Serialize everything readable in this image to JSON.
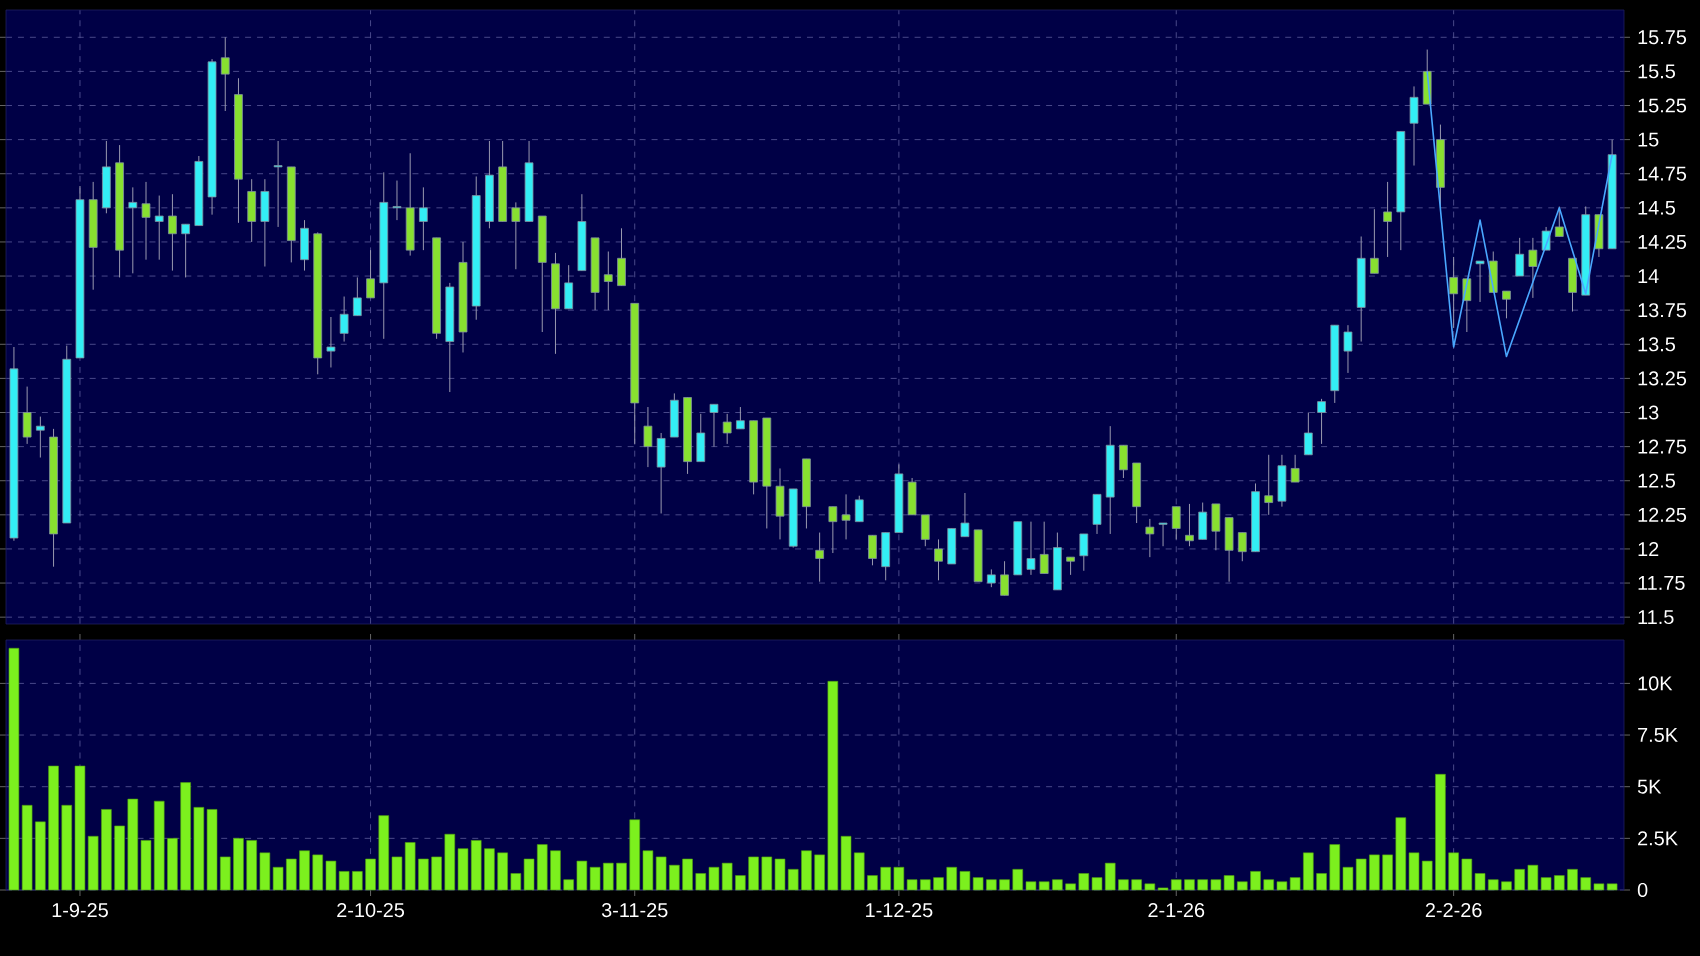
{
  "chart_data": [
    {
      "type": "candlestick",
      "categories": [
        null,
        null,
        null,
        null,
        null,
        null,
        null,
        null,
        null,
        null,
        null,
        null,
        null,
        null,
        null,
        null,
        null,
        null,
        null,
        null,
        null,
        null,
        null,
        null,
        null,
        null,
        null,
        null,
        null,
        null,
        null,
        null,
        null,
        null,
        null,
        null,
        null,
        null,
        null,
        null,
        null,
        null,
        null,
        null,
        null,
        null,
        null,
        null,
        null,
        null,
        null,
        null,
        null,
        null,
        null,
        null,
        null,
        null,
        null,
        null,
        null,
        null,
        null,
        null,
        null,
        null,
        null,
        null,
        null,
        null,
        null,
        null,
        null,
        null,
        null,
        null,
        null,
        null,
        null,
        null,
        null,
        null,
        null,
        null,
        null,
        null,
        null,
        null,
        null,
        null,
        null,
        null,
        null,
        null,
        null,
        null,
        null,
        null,
        null,
        null,
        null,
        null,
        null,
        null,
        null,
        null,
        null,
        null,
        null,
        null,
        null,
        null,
        null,
        null,
        null,
        null,
        null,
        null,
        null,
        null,
        null,
        null
      ],
      "ohlc": [
        [
          12.08,
          13.48,
          12.06,
          13.32
        ],
        [
          13.0,
          13.19,
          12.77,
          12.82
        ],
        [
          12.87,
          12.97,
          12.67,
          12.9
        ],
        [
          12.82,
          12.88,
          11.87,
          12.11
        ],
        [
          12.19,
          13.49,
          12.19,
          13.39
        ],
        [
          13.4,
          14.66,
          13.4,
          14.56
        ],
        [
          14.56,
          14.69,
          13.9,
          14.21
        ],
        [
          14.5,
          14.99,
          14.46,
          14.8
        ],
        [
          14.83,
          14.96,
          13.99,
          14.19
        ],
        [
          14.5,
          14.65,
          14.02,
          14.54
        ],
        [
          14.53,
          14.69,
          14.12,
          14.43
        ],
        [
          14.4,
          14.59,
          14.12,
          14.44
        ],
        [
          14.44,
          14.6,
          14.04,
          14.31
        ],
        [
          14.31,
          14.38,
          13.99,
          14.38
        ],
        [
          14.37,
          14.88,
          14.37,
          14.84
        ],
        [
          14.58,
          15.59,
          14.45,
          15.57
        ],
        [
          15.6,
          15.75,
          15.21,
          15.48
        ],
        [
          15.33,
          15.45,
          14.39,
          14.71
        ],
        [
          14.62,
          14.71,
          14.25,
          14.4
        ],
        [
          14.4,
          14.71,
          14.07,
          14.62
        ],
        [
          14.8,
          14.99,
          14.36,
          14.81
        ],
        [
          14.8,
          14.8,
          14.1,
          14.26
        ],
        [
          14.12,
          14.41,
          14.04,
          14.35
        ],
        [
          14.31,
          14.32,
          13.28,
          13.4
        ],
        [
          13.45,
          13.7,
          13.33,
          13.48
        ],
        [
          13.58,
          13.85,
          13.52,
          13.72
        ],
        [
          13.71,
          13.99,
          13.71,
          13.84
        ],
        [
          13.98,
          14.19,
          13.84,
          13.84
        ],
        [
          13.95,
          14.76,
          13.54,
          14.54
        ],
        [
          14.5,
          14.7,
          14.41,
          14.51
        ],
        [
          14.5,
          14.9,
          14.15,
          14.19
        ],
        [
          14.4,
          14.65,
          14.19,
          14.5
        ],
        [
          14.28,
          14.28,
          13.54,
          13.58
        ],
        [
          13.52,
          13.95,
          13.15,
          13.92
        ],
        [
          14.1,
          14.25,
          13.44,
          13.59
        ],
        [
          13.78,
          14.73,
          13.68,
          14.59
        ],
        [
          14.4,
          14.99,
          14.35,
          14.74
        ],
        [
          14.8,
          14.99,
          14.4,
          14.4
        ],
        [
          14.5,
          14.54,
          14.05,
          14.4
        ],
        [
          14.4,
          14.99,
          14.4,
          14.83
        ],
        [
          14.44,
          14.44,
          13.59,
          14.1
        ],
        [
          14.09,
          14.17,
          13.43,
          13.76
        ],
        [
          13.76,
          14.08,
          13.76,
          13.95
        ],
        [
          14.04,
          14.6,
          14.04,
          14.4
        ],
        [
          14.28,
          14.28,
          13.75,
          13.88
        ],
        [
          14.01,
          14.18,
          13.75,
          13.96
        ],
        [
          14.13,
          14.35,
          13.93,
          13.93
        ],
        [
          13.8,
          13.8,
          12.77,
          13.07
        ],
        [
          12.9,
          13.04,
          12.6,
          12.75
        ],
        [
          12.6,
          12.85,
          12.26,
          12.81
        ],
        [
          12.82,
          13.14,
          12.82,
          13.09
        ],
        [
          13.11,
          13.11,
          12.55,
          12.64
        ],
        [
          12.64,
          12.99,
          12.64,
          12.85
        ],
        [
          13.0,
          13.06,
          12.75,
          13.06
        ],
        [
          12.93,
          12.99,
          12.77,
          12.85
        ],
        [
          12.88,
          13.04,
          12.88,
          12.94
        ],
        [
          12.94,
          12.94,
          12.4,
          12.49
        ],
        [
          12.96,
          12.96,
          12.15,
          12.46
        ],
        [
          12.46,
          12.59,
          12.07,
          12.24
        ],
        [
          12.02,
          12.44,
          12.01,
          12.44
        ],
        [
          12.66,
          12.66,
          12.15,
          12.31
        ],
        [
          11.99,
          12.12,
          11.76,
          11.93
        ],
        [
          12.31,
          12.31,
          11.97,
          12.2
        ],
        [
          12.25,
          12.4,
          12.07,
          12.21
        ],
        [
          12.2,
          12.39,
          12.2,
          12.36
        ],
        [
          12.1,
          12.1,
          11.88,
          11.93
        ],
        [
          11.87,
          12.12,
          11.77,
          12.12
        ],
        [
          12.12,
          12.62,
          12.12,
          12.55
        ],
        [
          12.49,
          12.52,
          12.25,
          12.25
        ],
        [
          12.25,
          12.25,
          12.02,
          12.07
        ],
        [
          12.0,
          12.07,
          11.77,
          11.91
        ],
        [
          11.89,
          12.15,
          11.89,
          12.15
        ],
        [
          12.09,
          12.41,
          12.09,
          12.19
        ],
        [
          12.14,
          12.14,
          11.76,
          11.76
        ],
        [
          11.75,
          11.85,
          11.72,
          11.81
        ],
        [
          11.81,
          11.91,
          11.66,
          11.66
        ],
        [
          11.81,
          12.2,
          11.81,
          12.2
        ],
        [
          11.85,
          12.2,
          11.81,
          11.93
        ],
        [
          11.96,
          12.2,
          11.82,
          11.82
        ],
        [
          11.7,
          12.12,
          11.7,
          12.01
        ],
        [
          11.94,
          11.94,
          11.81,
          11.91
        ],
        [
          11.95,
          12.11,
          11.84,
          12.11
        ],
        [
          12.18,
          12.4,
          12.11,
          12.4
        ],
        [
          12.38,
          12.9,
          12.11,
          12.76
        ],
        [
          12.76,
          12.76,
          12.52,
          12.58
        ],
        [
          12.63,
          12.63,
          12.19,
          12.31
        ],
        [
          12.16,
          12.22,
          11.94,
          12.11
        ],
        [
          12.18,
          12.19,
          12.02,
          12.19
        ],
        [
          12.31,
          12.31,
          12.07,
          12.15
        ],
        [
          12.1,
          12.33,
          12.02,
          12.06
        ],
        [
          12.07,
          12.34,
          12.07,
          12.27
        ],
        [
          12.33,
          12.33,
          11.99,
          12.13
        ],
        [
          12.23,
          12.23,
          11.76,
          11.99
        ],
        [
          12.12,
          12.12,
          11.91,
          11.98
        ],
        [
          11.98,
          12.48,
          11.98,
          12.42
        ],
        [
          12.39,
          12.69,
          12.25,
          12.34
        ],
        [
          12.35,
          12.69,
          12.31,
          12.61
        ],
        [
          12.59,
          12.69,
          12.49,
          12.49
        ],
        [
          12.69,
          13.0,
          12.69,
          12.85
        ],
        [
          13.0,
          13.1,
          12.77,
          13.08
        ],
        [
          13.16,
          13.64,
          13.07,
          13.64
        ],
        [
          13.45,
          13.64,
          13.29,
          13.59
        ],
        [
          13.77,
          14.29,
          13.52,
          14.13
        ],
        [
          14.13,
          14.49,
          14.02,
          14.02
        ],
        [
          14.47,
          14.69,
          14.14,
          14.4
        ],
        [
          14.47,
          15.06,
          14.19,
          15.06
        ],
        [
          15.12,
          15.39,
          14.81,
          15.31
        ],
        [
          15.5,
          15.66,
          15.26,
          15.26
        ],
        [
          15.0,
          15.11,
          14.5,
          14.65
        ],
        [
          13.99,
          14.14,
          13.62,
          13.87
        ],
        [
          13.98,
          13.98,
          13.59,
          13.82
        ],
        [
          14.09,
          14.11,
          13.81,
          14.11
        ],
        [
          14.11,
          14.18,
          13.88,
          13.88
        ],
        [
          13.89,
          13.89,
          13.69,
          13.83
        ],
        [
          14.0,
          14.28,
          14.0,
          14.16
        ],
        [
          14.19,
          14.28,
          13.84,
          14.07
        ],
        [
          14.19,
          14.36,
          14.19,
          14.33
        ],
        [
          14.36,
          14.51,
          14.29,
          14.29
        ],
        [
          14.13,
          14.13,
          13.74,
          13.88
        ],
        [
          13.86,
          14.51,
          13.86,
          14.45
        ],
        [
          14.45,
          14.45,
          14.14,
          14.2
        ],
        [
          14.2,
          15.0,
          14.2,
          14.89
        ]
      ],
      "colors": [
        "#33eef5",
        "#88e030",
        "#33eef5",
        "#88e030",
        "#33eef5",
        "#33eef5",
        "#88e030",
        "#33eef5",
        "#88e030",
        "#33eef5",
        "#88e030",
        "#33eef5",
        "#88e030",
        "#33eef5",
        "#33eef5",
        "#33eef5",
        "#88e030",
        "#88e030",
        "#88e030",
        "#33eef5",
        "#33eef5",
        "#88e030",
        "#33eef5",
        "#88e030",
        "#33eef5",
        "#33eef5",
        "#33eef5",
        "#88e030",
        "#33eef5",
        "#33eef5",
        "#88e030",
        "#33eef5",
        "#88e030",
        "#33eef5",
        "#88e030",
        "#33eef5",
        "#33eef5",
        "#88e030",
        "#88e030",
        "#33eef5",
        "#88e030",
        "#88e030",
        "#33eef5",
        "#33eef5",
        "#88e030",
        "#88e030",
        "#88e030",
        "#88e030",
        "#88e030",
        "#33eef5",
        "#33eef5",
        "#88e030",
        "#33eef5",
        "#33eef5",
        "#88e030",
        "#33eef5",
        "#88e030",
        "#88e030",
        "#88e030",
        "#33eef5",
        "#88e030",
        "#88e030",
        "#88e030",
        "#88e030",
        "#33eef5",
        "#88e030",
        "#33eef5",
        "#33eef5",
        "#88e030",
        "#88e030",
        "#88e030",
        "#33eef5",
        "#33eef5",
        "#88e030",
        "#33eef5",
        "#88e030",
        "#33eef5",
        "#33eef5",
        "#88e030",
        "#33eef5",
        "#88e030",
        "#33eef5",
        "#33eef5",
        "#33eef5",
        "#88e030",
        "#88e030",
        "#88e030",
        "#33eef5",
        "#88e030",
        "#88e030",
        "#33eef5",
        "#88e030",
        "#88e030",
        "#88e030",
        "#33eef5",
        "#88e030",
        "#33eef5",
        "#88e030",
        "#33eef5",
        "#33eef5",
        "#33eef5",
        "#33eef5",
        "#33eef5",
        "#88e030",
        "#88e030",
        "#33eef5",
        "#33eef5",
        "#88e030",
        "#88e030",
        "#88e030",
        "#88e030",
        "#33eef5",
        "#88e030",
        "#88e030",
        "#33eef5",
        "#88e030",
        "#33eef5",
        "#88e030",
        "#88e030",
        "#33eef5",
        "#88e030",
        "#33eef5"
      ],
      "series": [
        {
          "type": "line",
          "color": "#4aa8ff",
          "values": [
            null,
            null,
            null,
            null,
            null,
            null,
            null,
            null,
            null,
            null,
            null,
            null,
            null,
            null,
            null,
            null,
            null,
            null,
            null,
            null,
            null,
            null,
            null,
            null,
            null,
            null,
            null,
            null,
            null,
            null,
            null,
            null,
            null,
            null,
            null,
            null,
            null,
            null,
            null,
            null,
            null,
            null,
            null,
            null,
            null,
            null,
            null,
            null,
            null,
            null,
            null,
            null,
            null,
            null,
            null,
            null,
            null,
            null,
            null,
            null,
            null,
            null,
            null,
            null,
            null,
            null,
            null,
            null,
            null,
            null,
            null,
            null,
            null,
            null,
            null,
            null,
            null,
            null,
            null,
            null,
            null,
            null,
            null,
            null,
            null,
            null,
            null,
            null,
            null,
            null,
            null,
            null,
            null,
            null,
            null,
            null,
            null,
            null,
            null,
            null,
            null,
            null,
            null,
            null,
            null,
            null,
            null,
            15.5,
            null,
            13.48,
            null,
            14.41,
            null,
            13.41,
            null,
            null,
            null,
            14.5,
            null,
            13.87,
            null,
            14.89
          ]
        }
      ],
      "ylim": [
        11.45,
        15.95
      ],
      "yticks": [
        11.5,
        11.75,
        12,
        12.25,
        12.5,
        12.75,
        13,
        13.25,
        13.5,
        13.75,
        14,
        14.25,
        14.5,
        14.75,
        15,
        15.25,
        15.5,
        15.75
      ],
      "grid": true
    },
    {
      "type": "bar",
      "categories": [
        null,
        null,
        null,
        null,
        null,
        "1-9-25",
        null,
        null,
        null,
        null,
        null,
        null,
        null,
        null,
        null,
        null,
        null,
        null,
        null,
        null,
        null,
        null,
        null,
        null,
        null,
        null,
        null,
        "2-10-25",
        null,
        null,
        null,
        null,
        null,
        null,
        null,
        null,
        null,
        null,
        null,
        null,
        null,
        null,
        null,
        null,
        null,
        null,
        null,
        "3-11-25",
        null,
        null,
        null,
        null,
        null,
        null,
        null,
        null,
        null,
        null,
        null,
        null,
        null,
        null,
        null,
        null,
        null,
        null,
        null,
        "1-12-25",
        null,
        null,
        null,
        null,
        null,
        null,
        null,
        null,
        null,
        null,
        null,
        null,
        null,
        null,
        null,
        null,
        null,
        null,
        null,
        null,
        "2-1-26",
        null,
        null,
        null,
        null,
        null,
        null,
        null,
        null,
        null,
        null,
        null,
        null,
        null,
        null,
        null,
        null,
        null,
        null,
        null,
        null,
        "2-2-26",
        null,
        null,
        null,
        null,
        null,
        null,
        null,
        null,
        null,
        null,
        null,
        null
      ],
      "values": [
        11700,
        4100,
        3300,
        6000,
        4100,
        6000,
        2600,
        3900,
        3100,
        4400,
        2400,
        4300,
        2500,
        5200,
        4000,
        3900,
        1600,
        2500,
        2400,
        1800,
        1100,
        1500,
        1900,
        1700,
        1400,
        900,
        900,
        1500,
        3600,
        1600,
        2300,
        1500,
        1600,
        2700,
        2000,
        2400,
        2000,
        1800,
        800,
        1500,
        2200,
        1900,
        500,
        1400,
        1100,
        1300,
        1300,
        3400,
        1900,
        1600,
        1200,
        1500,
        800,
        1100,
        1300,
        700,
        1600,
        1600,
        1500,
        1000,
        1900,
        1700,
        10100,
        2600,
        1800,
        700,
        1100,
        1100,
        500,
        500,
        600,
        1100,
        900,
        600,
        500,
        500,
        1000,
        400,
        400,
        500,
        300,
        800,
        600,
        1300,
        500,
        500,
        300,
        100,
        500,
        500,
        500,
        500,
        700,
        400,
        900,
        500,
        400,
        600,
        1800,
        800,
        2200,
        1100,
        1500,
        1700,
        1700,
        3500,
        1800,
        1400,
        5600,
        1800,
        1500,
        800,
        500,
        400,
        1000,
        1200,
        600,
        700,
        1000,
        600,
        300,
        300
      ],
      "color": "#7cf01e",
      "ylim": [
        0,
        12100
      ],
      "yticks": [
        0,
        {
          "value": 2500,
          "label": "2.5K"
        },
        {
          "value": 5000,
          "label": "5K"
        },
        {
          "value": 7500,
          "label": "7.5K"
        },
        {
          "value": 10000,
          "label": "10K"
        }
      ],
      "grid": true
    }
  ]
}
